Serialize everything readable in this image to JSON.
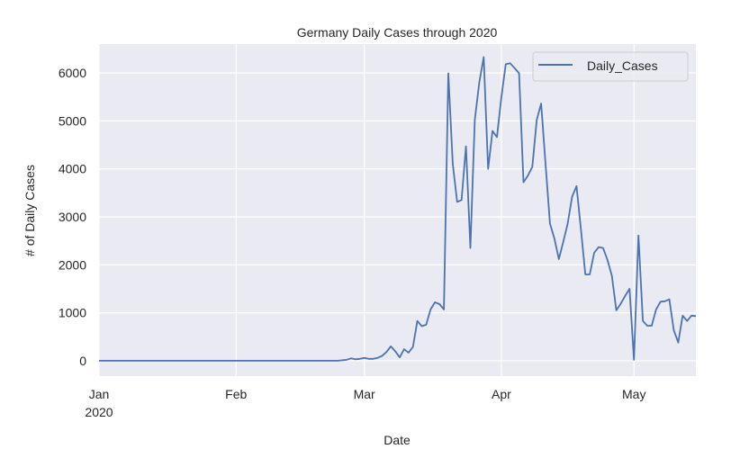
{
  "chart_data": {
    "type": "line",
    "title": "Germany Daily Cases through 2020",
    "xlabel": "Date",
    "ylabel": "# of Daily Cases",
    "x_start_date": "2020-01-01",
    "x_unit": "day",
    "xlim": [
      0,
      135
    ],
    "ylim": [
      -320,
      6600
    ],
    "grid": true,
    "legend": {
      "position": "top-right",
      "entries": [
        "Daily_Cases"
      ]
    },
    "x_ticks": [
      {
        "day": 0,
        "label": "Jan",
        "sublabel": "2020"
      },
      {
        "day": 31,
        "label": "Feb"
      },
      {
        "day": 60,
        "label": "Mar"
      },
      {
        "day": 91,
        "label": "Apr"
      },
      {
        "day": 121,
        "label": "May"
      }
    ],
    "y_ticks": [
      0,
      1000,
      2000,
      3000,
      4000,
      5000,
      6000
    ],
    "series": [
      {
        "name": "Daily_Cases",
        "color": "#4c72b0",
        "values": [
          0,
          0,
          0,
          0,
          0,
          0,
          0,
          0,
          0,
          0,
          0,
          0,
          0,
          0,
          0,
          0,
          0,
          0,
          0,
          0,
          0,
          0,
          0,
          0,
          0,
          0,
          0,
          0,
          0,
          0,
          0,
          0,
          0,
          0,
          0,
          0,
          0,
          0,
          0,
          0,
          0,
          0,
          0,
          0,
          0,
          0,
          0,
          0,
          0,
          0,
          0,
          0,
          0,
          0,
          0,
          10,
          20,
          50,
          30,
          40,
          60,
          40,
          40,
          60,
          100,
          180,
          300,
          200,
          70,
          240,
          170,
          290,
          830,
          720,
          750,
          1070,
          1220,
          1180,
          1070,
          5990,
          4110,
          3310,
          3350,
          4470,
          2350,
          5020,
          5800,
          6330,
          4000,
          4790,
          4660,
          5490,
          6180,
          6200,
          6100,
          5990,
          3720,
          3860,
          4040,
          5020,
          5360,
          4100,
          2860,
          2550,
          2120,
          2480,
          2860,
          3420,
          3640,
          2740,
          1800,
          1800,
          2250,
          2370,
          2350,
          2100,
          1770,
          1050,
          1190,
          1350,
          1500,
          20,
          2610,
          830,
          730,
          730,
          1070,
          1230,
          1240,
          1280,
          640,
          380,
          940,
          830,
          940,
          930
        ]
      }
    ]
  },
  "colors": {
    "plot_bg": "#eaeaf2",
    "grid": "#ffffff",
    "line": "#4c72b0"
  }
}
